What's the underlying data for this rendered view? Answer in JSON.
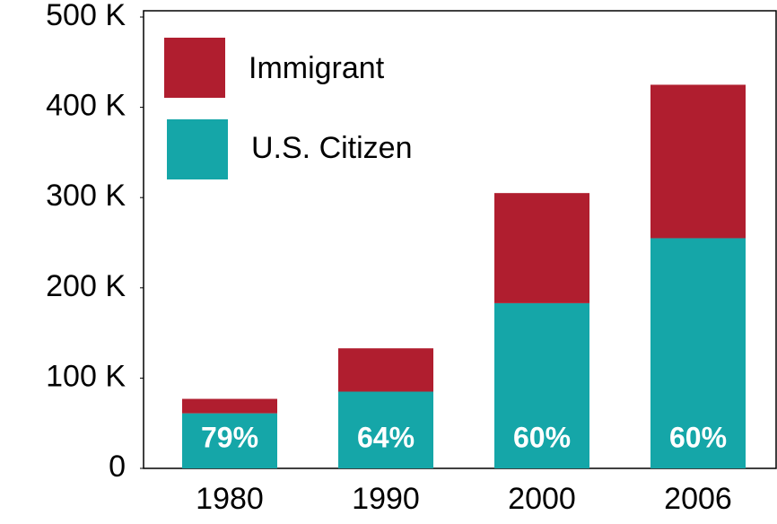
{
  "chart_data": {
    "type": "stacked_bar",
    "categories": [
      "1980",
      "1990",
      "2000",
      "2006"
    ],
    "series": [
      {
        "name": "U.S. Citizen",
        "color": "#15a6a8",
        "values": [
          61000,
          85000,
          183000,
          255000
        ]
      },
      {
        "name": "Immigrant",
        "color": "#b01e2f",
        "values": [
          16000,
          48000,
          122000,
          170000
        ]
      }
    ],
    "share_labels": [
      "79%",
      "64%",
      "60%",
      "60%"
    ],
    "ylim": [
      0,
      500000
    ],
    "yticks": [
      0,
      {
        "value": 100000,
        "label": "100 K"
      },
      {
        "value": 200000,
        "label": "200 K"
      },
      {
        "value": 300000,
        "label": "300 K"
      },
      {
        "value": 400000,
        "label": "400 K"
      },
      {
        "value": 500000,
        "label": "500 K"
      }
    ],
    "legend": "upper left"
  }
}
